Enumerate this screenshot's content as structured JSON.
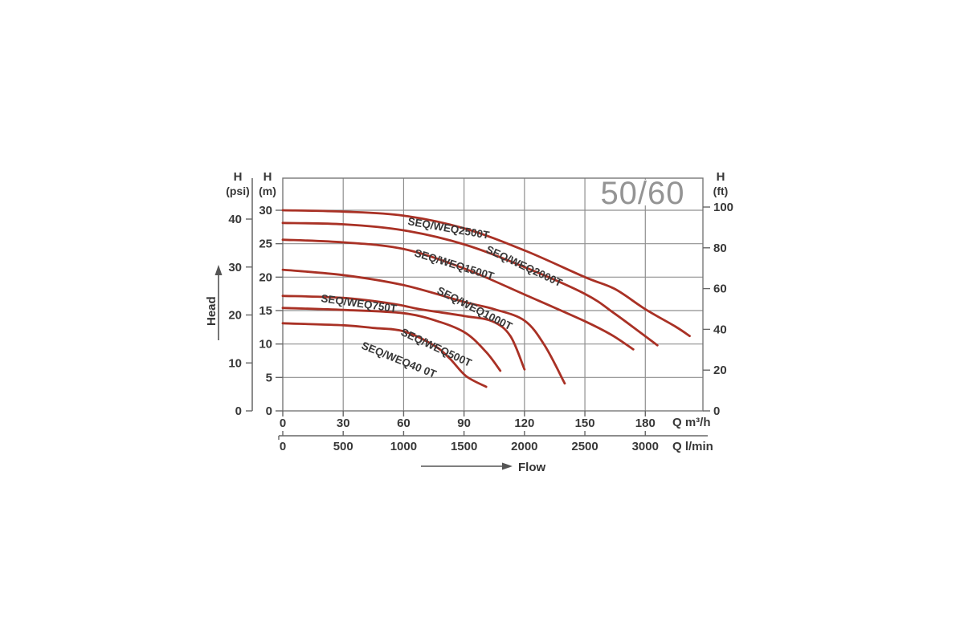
{
  "chart_data": {
    "type": "line",
    "frequency_label": "50/60",
    "head_arrow_label": "Head",
    "flow_arrow_label": "Flow",
    "y_axes": [
      {
        "id": "psi",
        "title": "H",
        "unit": "(psi)",
        "ticks": [
          40,
          30,
          20,
          10,
          0
        ],
        "range": [
          0,
          48.5
        ]
      },
      {
        "id": "m",
        "title": "H",
        "unit": "(m)",
        "ticks": [
          30,
          25,
          20,
          15,
          10,
          5,
          0
        ],
        "range": [
          0,
          34.8
        ]
      },
      {
        "id": "ft",
        "title": "H",
        "unit": "(ft)",
        "ticks": [
          100,
          80,
          60,
          40,
          20,
          0
        ],
        "range": [
          0,
          114
        ]
      }
    ],
    "x_axes": [
      {
        "id": "m3h",
        "title": "Q m³/h",
        "ticks": [
          0,
          30,
          60,
          90,
          120,
          150,
          180
        ],
        "range": [
          0,
          208.6
        ]
      },
      {
        "id": "lmin",
        "title": "Q l/min",
        "ticks": [
          0,
          500,
          1000,
          1500,
          2000,
          2500,
          3000
        ],
        "range": [
          0,
          3477
        ]
      }
    ],
    "grid": {
      "x_step_m3h": 30,
      "y_step_m": 5
    },
    "series": [
      {
        "label": "SEQ/WEQ2500T",
        "points": [
          [
            0,
            30
          ],
          [
            30,
            29.8
          ],
          [
            60,
            29.2
          ],
          [
            90,
            27.3
          ],
          [
            120,
            24
          ],
          [
            150,
            20
          ],
          [
            165,
            18.2
          ],
          [
            180,
            15.2
          ],
          [
            195,
            12.6
          ],
          [
            202,
            11.2
          ]
        ]
      },
      {
        "label": "SEQ/WEQ2000T",
        "points": [
          [
            0,
            28.1
          ],
          [
            30,
            27.9
          ],
          [
            60,
            27
          ],
          [
            90,
            24.9
          ],
          [
            120,
            21.5
          ],
          [
            150,
            17.5
          ],
          [
            165,
            14.5
          ],
          [
            178,
            11.6
          ],
          [
            186,
            9.8
          ]
        ]
      },
      {
        "label": "SEQ/WEQ1500T",
        "points": [
          [
            0,
            25.6
          ],
          [
            30,
            25.2
          ],
          [
            60,
            24.2
          ],
          [
            90,
            21.3
          ],
          [
            120,
            17.4
          ],
          [
            150,
            13.4
          ],
          [
            163,
            11.4
          ],
          [
            174,
            9.2
          ]
        ]
      },
      {
        "label": "SEQ/WEQ1000T",
        "points": [
          [
            0,
            21.1
          ],
          [
            30,
            20.3
          ],
          [
            60,
            18.8
          ],
          [
            90,
            16.3
          ],
          [
            105,
            15.2
          ],
          [
            120,
            13.5
          ],
          [
            130,
            9.8
          ],
          [
            140,
            4.1
          ]
        ]
      },
      {
        "label": "SEQ/WEQ750T",
        "points": [
          [
            0,
            17.2
          ],
          [
            30,
            16.9
          ],
          [
            55,
            16
          ],
          [
            68,
            15.2
          ],
          [
            90,
            14.2
          ],
          [
            104,
            13.4
          ],
          [
            113,
            11.2
          ],
          [
            120,
            6.2
          ]
        ]
      },
      {
        "label": "SEQ/WEQ500T",
        "points": [
          [
            0,
            15.4
          ],
          [
            30,
            15.1
          ],
          [
            60,
            14.6
          ],
          [
            78,
            13.3
          ],
          [
            91,
            11.6
          ],
          [
            101,
            8.8
          ],
          [
            108,
            6
          ]
        ]
      },
      {
        "label": "SEQ/WEQ40 0T",
        "points": [
          [
            0,
            13.1
          ],
          [
            30,
            12.8
          ],
          [
            45,
            12.4
          ],
          [
            60,
            11.9
          ],
          [
            75,
            9.8
          ],
          [
            83,
            7.8
          ],
          [
            91,
            5.2
          ],
          [
            101,
            3.6
          ]
        ]
      }
    ],
    "colors": {
      "curve": "#a93125",
      "grid": "#8f8f8f",
      "border": "#777777",
      "axis_line": "#666666",
      "axis_text": "#383838",
      "curve_label_text": "#1c1c1c",
      "frequency_text": "#949494",
      "background": "#ffffff"
    }
  }
}
